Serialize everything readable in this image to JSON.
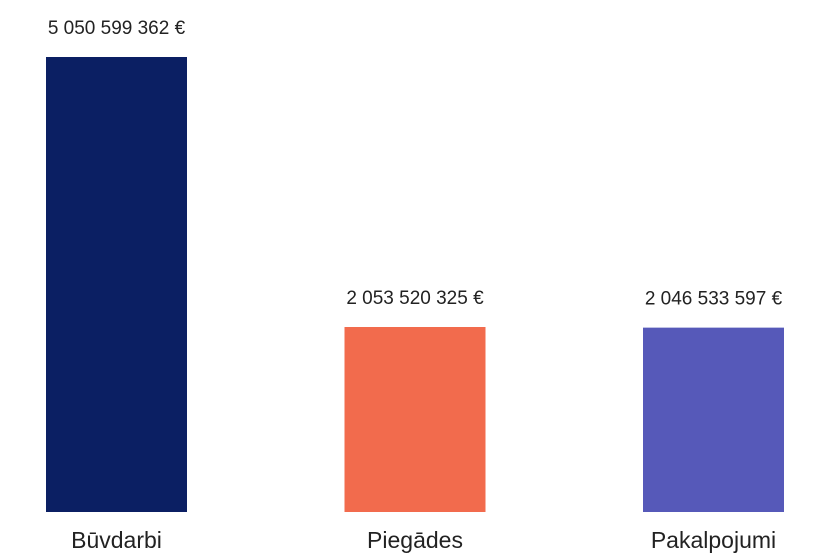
{
  "chart_data": {
    "type": "bar",
    "categories": [
      "Būvdarbi",
      "Piegādes",
      "Pakalpojumi"
    ],
    "values": [
      5050599362,
      2053520325,
      2046533597
    ],
    "value_labels": [
      "5 050 599 362 €",
      "2 053 520 325 €",
      "2 046 533 597 €"
    ],
    "colors": [
      "#0b1f63",
      "#f26b4d",
      "#5659b9"
    ]
  }
}
